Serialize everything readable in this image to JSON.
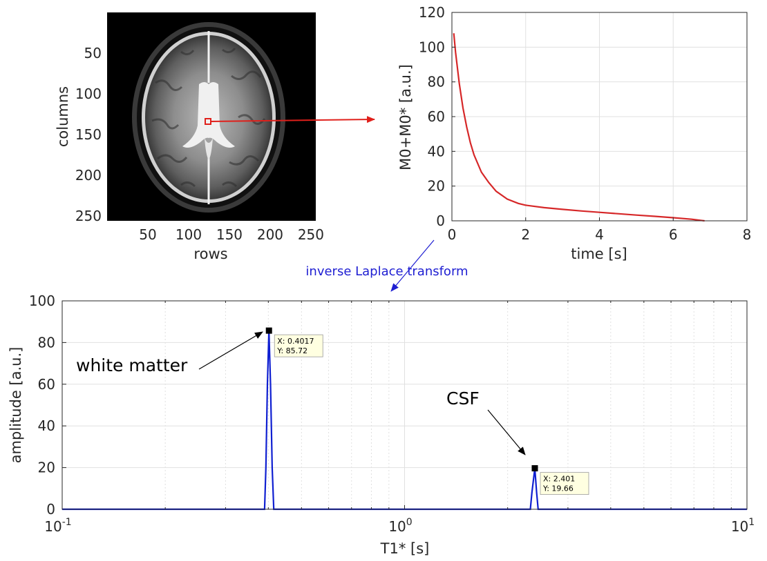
{
  "colors": {
    "decay_line": "#d62728",
    "spectrum_line": "#0f1fd1",
    "arrow_red": "#e0201b",
    "annotation_blue": "#1e1ed2",
    "datatip_bg": "#ffffe1",
    "grid": "#e0e0e0",
    "axis": "#262626"
  },
  "annotation": {
    "transform_label": "inverse Laplace transform",
    "white_matter": "white matter",
    "csf": "CSF"
  },
  "chart_data": [
    {
      "type": "image",
      "name": "brain-mri",
      "xlabel": "rows",
      "ylabel": "columns",
      "xlim": [
        0,
        256
      ],
      "ylim": [
        0,
        256
      ],
      "xticks": [
        50,
        100,
        150,
        200,
        250
      ],
      "yticks": [
        50,
        100,
        150,
        200,
        250
      ],
      "roi": {
        "x": 128,
        "y": 134
      }
    },
    {
      "type": "line",
      "name": "decay-curve",
      "xlabel": "time [s]",
      "ylabel": "M0+M0* [a.u.]",
      "xlim": [
        0,
        8
      ],
      "ylim": [
        0,
        120
      ],
      "xticks": [
        0,
        2,
        4,
        6,
        8
      ],
      "yticks": [
        0,
        20,
        40,
        60,
        80,
        100,
        120
      ],
      "grid": true,
      "series": [
        {
          "name": "signal",
          "x": [
            0.05,
            0.1,
            0.2,
            0.3,
            0.4,
            0.5,
            0.6,
            0.8,
            1.0,
            1.2,
            1.5,
            1.8,
            2.0,
            2.5,
            3.0,
            3.5,
            4.0,
            4.5,
            5.0,
            5.5,
            6.0,
            6.5,
            6.85
          ],
          "y": [
            108,
            97,
            79,
            65,
            54,
            45,
            38,
            28,
            22,
            17,
            12.5,
            10,
            9,
            7.6,
            6.6,
            5.7,
            4.9,
            4.1,
            3.3,
            2.6,
            1.8,
            0.9,
            0
          ]
        }
      ]
    },
    {
      "type": "line",
      "name": "t1-spectrum",
      "xscale": "log",
      "xlabel": "T1* [s]",
      "ylabel": "amplitude [a.u.]",
      "xlim": [
        0.1,
        10
      ],
      "ylim": [
        0,
        100
      ],
      "yticks": [
        0,
        20,
        40,
        60,
        80,
        100
      ],
      "xticklabels": [
        {
          "value": 0.1,
          "base": "10",
          "exp": "-1"
        },
        {
          "value": 1,
          "base": "10",
          "exp": "0"
        },
        {
          "value": 10,
          "base": "10",
          "exp": "1"
        }
      ],
      "grid": true,
      "series": [
        {
          "name": "amplitude",
          "x": [
            0.1,
            0.39,
            0.3935,
            0.3975,
            0.4017,
            0.406,
            0.4105,
            0.415,
            2.33,
            2.355,
            2.401,
            2.43,
            2.455,
            10
          ],
          "y": [
            0,
            0,
            20,
            60,
            85.72,
            60,
            20,
            0,
            0,
            8,
            19.66,
            8,
            0,
            0
          ]
        }
      ],
      "datatips": [
        {
          "x": 0.4017,
          "y": 85.72,
          "label_x": "X: 0.4017",
          "label_y": "Y: 85.72"
        },
        {
          "x": 2.401,
          "y": 19.66,
          "label_x": "X: 2.401",
          "label_y": "Y: 19.66"
        }
      ]
    }
  ]
}
